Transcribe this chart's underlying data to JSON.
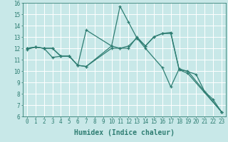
{
  "xlabel": "Humidex (Indice chaleur)",
  "bg_color": "#c8e8e8",
  "line_color": "#2e7d72",
  "grid_color": "#ffffff",
  "xlim": [
    -0.5,
    23.5
  ],
  "ylim": [
    6,
    16
  ],
  "xticks": [
    0,
    1,
    2,
    3,
    4,
    5,
    6,
    7,
    8,
    9,
    10,
    11,
    12,
    13,
    14,
    15,
    16,
    17,
    18,
    19,
    20,
    21,
    22,
    23
  ],
  "yticks": [
    6,
    7,
    8,
    9,
    10,
    11,
    12,
    13,
    14,
    15,
    16
  ],
  "series": [
    {
      "x": [
        0,
        1,
        2,
        3,
        4,
        5,
        6,
        7,
        10,
        11,
        12,
        13,
        14,
        15,
        16,
        17,
        18,
        19,
        23
      ],
      "y": [
        12.0,
        12.1,
        12.0,
        12.0,
        11.3,
        11.3,
        10.5,
        10.4,
        12.2,
        12.0,
        12.2,
        12.9,
        12.2,
        13.0,
        13.3,
        13.4,
        10.1,
        9.8,
        6.4
      ]
    },
    {
      "x": [
        0,
        1,
        2,
        3,
        4,
        5,
        6,
        7,
        10,
        11,
        12,
        13,
        14,
        16,
        17,
        18,
        20,
        21,
        22,
        23
      ],
      "y": [
        11.9,
        12.1,
        12.0,
        11.2,
        11.3,
        11.3,
        10.5,
        13.6,
        12.2,
        15.7,
        14.3,
        12.9,
        12.0,
        10.3,
        8.6,
        10.2,
        9.7,
        8.2,
        7.5,
        6.4
      ]
    },
    {
      "x": [
        0,
        1,
        2,
        3,
        4,
        5,
        6,
        7,
        10,
        11,
        12,
        13,
        14,
        15,
        16,
        17,
        18,
        19,
        23
      ],
      "y": [
        12.0,
        12.1,
        12.0,
        12.0,
        11.3,
        11.3,
        10.5,
        10.4,
        12.0,
        12.0,
        12.0,
        13.0,
        12.2,
        13.0,
        13.3,
        13.3,
        10.1,
        10.0,
        6.4
      ]
    }
  ]
}
